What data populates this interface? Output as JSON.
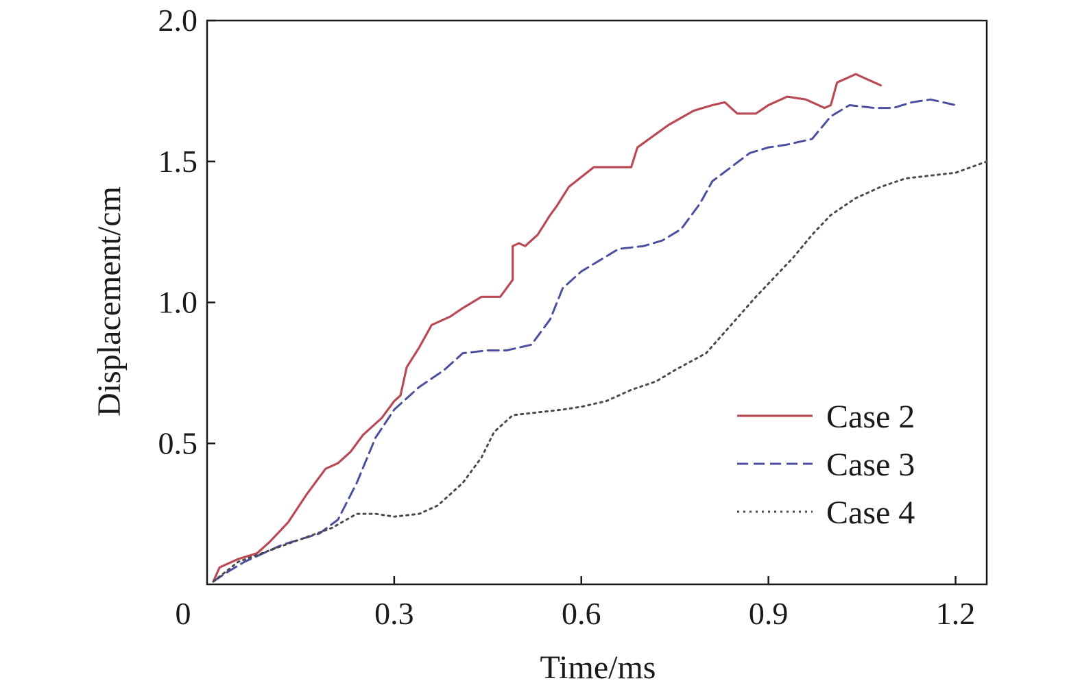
{
  "chart_data": {
    "type": "line",
    "title": "",
    "xlabel": "Time/ms",
    "ylabel": "Displacement/cm",
    "xlim": [
      0,
      1.25
    ],
    "ylim": [
      0,
      2.0
    ],
    "x_ticks": [
      {
        "value": 0,
        "label": "0"
      },
      {
        "value": 0.3,
        "label": "0.3"
      },
      {
        "value": 0.6,
        "label": "0.6"
      },
      {
        "value": 0.9,
        "label": "0.9"
      },
      {
        "value": 1.2,
        "label": "1.2"
      }
    ],
    "y_ticks": [
      {
        "value": 0.5,
        "label": "0.5"
      },
      {
        "value": 1.0,
        "label": "1.0"
      },
      {
        "value": 1.5,
        "label": "1.5"
      },
      {
        "value": 2.0,
        "label": "2.0"
      }
    ],
    "grid": false,
    "legend_position": "bottom-right",
    "series": [
      {
        "name": "Case 2",
        "style": "solid",
        "color": "#b94a55",
        "points": [
          [
            0.01,
            0.01
          ],
          [
            0.02,
            0.06
          ],
          [
            0.05,
            0.09
          ],
          [
            0.08,
            0.11
          ],
          [
            0.1,
            0.15
          ],
          [
            0.13,
            0.22
          ],
          [
            0.16,
            0.32
          ],
          [
            0.19,
            0.41
          ],
          [
            0.21,
            0.43
          ],
          [
            0.23,
            0.47
          ],
          [
            0.25,
            0.53
          ],
          [
            0.28,
            0.59
          ],
          [
            0.3,
            0.65
          ],
          [
            0.31,
            0.67
          ],
          [
            0.32,
            0.77
          ],
          [
            0.34,
            0.84
          ],
          [
            0.36,
            0.92
          ],
          [
            0.39,
            0.95
          ],
          [
            0.41,
            0.98
          ],
          [
            0.44,
            1.02
          ],
          [
            0.47,
            1.02
          ],
          [
            0.49,
            1.08
          ],
          [
            0.49,
            1.2
          ],
          [
            0.5,
            1.21
          ],
          [
            0.51,
            1.2
          ],
          [
            0.53,
            1.24
          ],
          [
            0.55,
            1.31
          ],
          [
            0.56,
            1.34
          ],
          [
            0.58,
            1.41
          ],
          [
            0.62,
            1.48
          ],
          [
            0.65,
            1.48
          ],
          [
            0.68,
            1.48
          ],
          [
            0.69,
            1.55
          ],
          [
            0.74,
            1.63
          ],
          [
            0.78,
            1.68
          ],
          [
            0.81,
            1.7
          ],
          [
            0.83,
            1.71
          ],
          [
            0.85,
            1.67
          ],
          [
            0.88,
            1.67
          ],
          [
            0.9,
            1.7
          ],
          [
            0.93,
            1.73
          ],
          [
            0.96,
            1.72
          ],
          [
            0.99,
            1.69
          ],
          [
            1.0,
            1.7
          ],
          [
            1.01,
            1.78
          ],
          [
            1.04,
            1.81
          ],
          [
            1.06,
            1.79
          ],
          [
            1.08,
            1.77
          ]
        ]
      },
      {
        "name": "Case 3",
        "style": "dashed",
        "color": "#4a4fa0",
        "points": [
          [
            0.01,
            0.01
          ],
          [
            0.03,
            0.04
          ],
          [
            0.06,
            0.08
          ],
          [
            0.09,
            0.11
          ],
          [
            0.12,
            0.14
          ],
          [
            0.15,
            0.16
          ],
          [
            0.18,
            0.18
          ],
          [
            0.21,
            0.23
          ],
          [
            0.24,
            0.36
          ],
          [
            0.27,
            0.52
          ],
          [
            0.3,
            0.62
          ],
          [
            0.34,
            0.7
          ],
          [
            0.38,
            0.76
          ],
          [
            0.41,
            0.82
          ],
          [
            0.45,
            0.83
          ],
          [
            0.48,
            0.83
          ],
          [
            0.52,
            0.85
          ],
          [
            0.55,
            0.94
          ],
          [
            0.57,
            1.05
          ],
          [
            0.6,
            1.11
          ],
          [
            0.63,
            1.15
          ],
          [
            0.66,
            1.19
          ],
          [
            0.7,
            1.2
          ],
          [
            0.73,
            1.22
          ],
          [
            0.76,
            1.26
          ],
          [
            0.79,
            1.35
          ],
          [
            0.81,
            1.43
          ],
          [
            0.84,
            1.48
          ],
          [
            0.87,
            1.53
          ],
          [
            0.9,
            1.55
          ],
          [
            0.93,
            1.56
          ],
          [
            0.97,
            1.58
          ],
          [
            1.0,
            1.66
          ],
          [
            1.03,
            1.7
          ],
          [
            1.07,
            1.69
          ],
          [
            1.1,
            1.69
          ],
          [
            1.13,
            1.71
          ],
          [
            1.16,
            1.72
          ],
          [
            1.2,
            1.7
          ]
        ]
      },
      {
        "name": "Case 4",
        "style": "dotted",
        "color": "#4a4a4a",
        "points": [
          [
            0.01,
            0.01
          ],
          [
            0.05,
            0.08
          ],
          [
            0.1,
            0.12
          ],
          [
            0.15,
            0.16
          ],
          [
            0.2,
            0.2
          ],
          [
            0.24,
            0.25
          ],
          [
            0.27,
            0.25
          ],
          [
            0.3,
            0.24
          ],
          [
            0.34,
            0.25
          ],
          [
            0.37,
            0.28
          ],
          [
            0.41,
            0.36
          ],
          [
            0.44,
            0.45
          ],
          [
            0.46,
            0.54
          ],
          [
            0.49,
            0.6
          ],
          [
            0.53,
            0.61
          ],
          [
            0.57,
            0.62
          ],
          [
            0.6,
            0.63
          ],
          [
            0.64,
            0.65
          ],
          [
            0.68,
            0.69
          ],
          [
            0.72,
            0.72
          ],
          [
            0.75,
            0.76
          ],
          [
            0.8,
            0.82
          ],
          [
            0.84,
            0.92
          ],
          [
            0.88,
            1.02
          ],
          [
            0.91,
            1.09
          ],
          [
            0.94,
            1.16
          ],
          [
            0.97,
            1.24
          ],
          [
            1.0,
            1.31
          ],
          [
            1.04,
            1.37
          ],
          [
            1.08,
            1.41
          ],
          [
            1.12,
            1.44
          ],
          [
            1.16,
            1.45
          ],
          [
            1.2,
            1.46
          ],
          [
            1.25,
            1.5
          ]
        ]
      }
    ]
  }
}
